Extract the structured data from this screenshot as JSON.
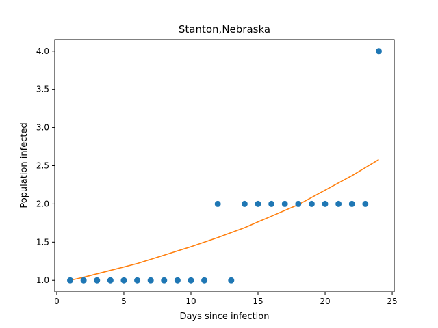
{
  "chart_data": {
    "type": "scatter",
    "title": "Stanton,Nebraska",
    "xlabel": "Days since infection",
    "ylabel": "Population infected",
    "xlim": [
      -0.15,
      25.15
    ],
    "ylim": [
      0.85,
      4.15
    ],
    "xticks": [
      0,
      5,
      10,
      15,
      20,
      25
    ],
    "yticks": [
      1.0,
      1.5,
      2.0,
      2.5,
      3.0,
      3.5,
      4.0
    ],
    "grid": false,
    "legend": "none",
    "series": [
      {
        "kind": "scatter",
        "color": "#1f77b4",
        "x": [
          1,
          2,
          3,
          4,
          5,
          6,
          7,
          8,
          9,
          10,
          11,
          12,
          13,
          14,
          15,
          16,
          17,
          18,
          19,
          20,
          21,
          22,
          23,
          24
        ],
        "y": [
          1,
          1,
          1,
          1,
          1,
          1,
          1,
          1,
          1,
          1,
          1,
          2,
          1,
          2,
          2,
          2,
          2,
          2,
          2,
          2,
          2,
          2,
          2,
          4
        ]
      },
      {
        "kind": "line",
        "color": "#ff7f0e",
        "x": [
          1,
          2,
          4,
          6,
          8,
          10,
          12,
          14,
          16,
          18,
          20,
          22,
          24
        ],
        "y": [
          1.0,
          1.04,
          1.13,
          1.22,
          1.33,
          1.44,
          1.56,
          1.69,
          1.84,
          1.99,
          2.18,
          2.37,
          2.58
        ]
      }
    ]
  }
}
